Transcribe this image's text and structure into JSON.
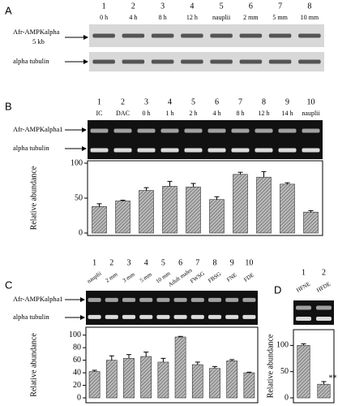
{
  "panels": [
    {
      "letter": "A",
      "lane_numbers": [
        1,
        2,
        3,
        4,
        5,
        6,
        7,
        8
      ],
      "lane_labels": [
        "0 h",
        "4 h",
        "8 h",
        "12 h",
        "nauplii",
        "2 mm",
        "5 mm",
        "10 mm"
      ],
      "rows": [
        {
          "label": "Afr-AMPKalpha",
          "size": "5 kb"
        },
        {
          "label": "alpha tubulin"
        }
      ]
    },
    {
      "letter": "B",
      "lane_numbers": [
        1,
        2,
        3,
        4,
        5,
        6,
        7,
        8,
        9,
        10
      ],
      "lane_labels": [
        "IC",
        "DAC",
        "0 h",
        "1 h",
        "2 h",
        "4 h",
        "8 h",
        "12 h",
        "14 h",
        "nauplii"
      ],
      "rows": [
        {
          "label": "Afr-AMPKalpha1"
        },
        {
          "label": "alpha tubulin"
        }
      ]
    },
    {
      "letter": "C",
      "lane_numbers": [
        1,
        2,
        3,
        4,
        5,
        6,
        7,
        8,
        9,
        10
      ],
      "lane_labels": [
        "nauplii",
        "2 mm",
        "3 mm",
        "5 mm",
        "10 mm",
        "Adult males",
        "FWSG",
        "FBSG",
        "FNE",
        "FDE"
      ],
      "rows": [
        {
          "label": "Afr-AMPKalpha1"
        },
        {
          "label": "alpha tubulin"
        }
      ]
    },
    {
      "letter": "D",
      "lane_numbers": [
        1,
        2
      ],
      "lane_labels": [
        "HFNE",
        "HFDE"
      ],
      "rows": []
    }
  ],
  "chart_data": [
    {
      "type": "bar",
      "ylabel": "Relative abundance",
      "values": [
        38,
        46,
        61,
        67,
        66,
        48,
        84,
        80,
        70,
        30
      ],
      "errors": [
        4,
        1,
        4,
        7,
        5,
        4,
        3,
        8,
        2,
        2
      ],
      "ylim": [
        0,
        100
      ],
      "yticks": [
        0,
        50,
        100
      ],
      "color": "#999999"
    },
    {
      "type": "bar",
      "ylabel": "Relative abundance",
      "values": [
        42,
        60,
        63,
        66,
        57,
        97,
        53,
        47,
        59,
        40
      ],
      "errors": [
        2,
        7,
        6,
        7,
        6,
        1,
        4,
        3,
        2,
        1
      ],
      "ylim": [
        0,
        110
      ],
      "yticks": [
        0,
        20,
        40,
        60,
        80,
        100
      ],
      "color": "#999999"
    },
    {
      "type": "bar",
      "ylabel": "Relative abundance",
      "values": [
        100,
        26
      ],
      "errors": [
        3,
        5
      ],
      "ylim": [
        0,
        130
      ],
      "yticks": [
        0,
        50,
        100
      ],
      "color": "#999999",
      "annotation": "**"
    }
  ]
}
